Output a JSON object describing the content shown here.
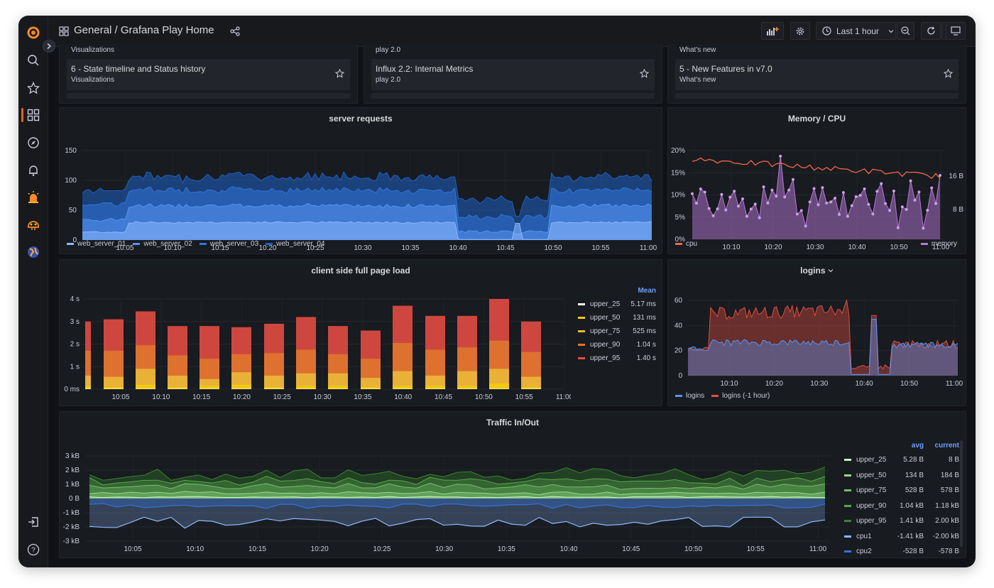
{
  "breadcrumb": {
    "folder": "General",
    "dashboard": " / Grafana Play Home"
  },
  "toolbar": {
    "time_range": "Last 1 hour"
  },
  "sidebar": {
    "icons": [
      "grafana-logo-icon",
      "search-icon",
      "star-icon",
      "dashboards-icon",
      "explore-icon",
      "alerting-icon",
      "oncall-icon",
      "ml-icon",
      "globe-icon",
      "sign-in-icon",
      "help-icon"
    ]
  },
  "lists": [
    {
      "top_sub": "Visualizations",
      "title": "6 - State timeline and Status history",
      "sub": "Visualizations"
    },
    {
      "top_sub": "play 2.0",
      "title": "Influx 2.2: Internal Metrics",
      "sub": "play 2.0"
    },
    {
      "top_sub": "What's new",
      "title": "5 - New Features in v7.0",
      "sub": "What's new"
    }
  ],
  "server_requests": {
    "title": "server requests",
    "yticks": [
      "150",
      "100",
      "50",
      "0"
    ],
    "xticks": [
      "10:05",
      "10:10",
      "10:15",
      "10:20",
      "10:25",
      "10:30",
      "10:35",
      "10:40",
      "10:45",
      "10:50",
      "10:55",
      "11:00"
    ],
    "legend": [
      "web_server_01",
      "web_server_02",
      "web_server_03",
      "web_server_04"
    ],
    "colors": [
      "#8ab8ff",
      "#5794f2",
      "#3274d9",
      "#1f60c4"
    ]
  },
  "memory_cpu": {
    "title": "Memory / CPU",
    "yticks_left": [
      "20%",
      "15%",
      "10%",
      "5%",
      "0%"
    ],
    "yticks_right": [
      "16 B",
      "8 B"
    ],
    "xticks": [
      "10:10",
      "10:20",
      "10:30",
      "10:40",
      "10:50",
      "11:00"
    ],
    "legend": [
      "cpu",
      "memory"
    ],
    "colors": [
      "#f2654a",
      "#b877d9"
    ]
  },
  "page_load": {
    "title": "client side full page load",
    "yticks": [
      "4 s",
      "3 s",
      "2 s",
      "1 s",
      "0 ms"
    ],
    "xticks": [
      "10:05",
      "10:10",
      "10:15",
      "10:20",
      "10:25",
      "10:30",
      "10:35",
      "10:40",
      "10:45",
      "10:50",
      "10:55",
      "11:00"
    ],
    "table_header": "Mean",
    "rows": [
      {
        "name": "upper_25",
        "mean": "5.17 ms",
        "color": "#fff8e5"
      },
      {
        "name": "upper_50",
        "mean": "131 ms",
        "color": "#f2cc0c"
      },
      {
        "name": "upper_75",
        "mean": "525 ms",
        "color": "#eab839"
      },
      {
        "name": "upper_90",
        "mean": "1.04 s",
        "color": "#e0752d"
      },
      {
        "name": "upper_95",
        "mean": "1.40 s",
        "color": "#e24d42"
      }
    ]
  },
  "logins": {
    "title": "logins",
    "yticks": [
      "60",
      "40",
      "20",
      "0"
    ],
    "xticks": [
      "10:10",
      "10:20",
      "10:30",
      "10:40",
      "10:50",
      "11:00"
    ],
    "legend": [
      "logins",
      "logins (-1 hour)"
    ],
    "colors": [
      "#5794f2",
      "#e24d42"
    ]
  },
  "traffic": {
    "title": "Traffic In/Out",
    "yticks": [
      "3 kB",
      "2 kB",
      "1 kB",
      "0 B",
      "-1 kB",
      "-2 kB",
      "-3 kB"
    ],
    "xticks": [
      "10:05",
      "10:10",
      "10:15",
      "10:20",
      "10:25",
      "10:30",
      "10:35",
      "10:40",
      "10:45",
      "10:50",
      "10:55",
      "11:00"
    ],
    "table_header": {
      "avg": "avg",
      "current": "current"
    },
    "rows": [
      {
        "name": "upper_25",
        "avg": "5.28 B",
        "current": "8 B",
        "color": "#c8f2c2"
      },
      {
        "name": "upper_50",
        "avg": "134 B",
        "current": "184 B",
        "color": "#96d98d"
      },
      {
        "name": "upper_75",
        "avg": "528 B",
        "current": "578 B",
        "color": "#73bf69"
      },
      {
        "name": "upper_90",
        "avg": "1.04 kB",
        "current": "1.18 kB",
        "color": "#56a64b"
      },
      {
        "name": "upper_95",
        "avg": "1.41 kB",
        "current": "2.00 kB",
        "color": "#37872d"
      },
      {
        "name": "cpu1",
        "avg": "-1.41 kB",
        "current": "-2.00 kB",
        "color": "#8ab8ff"
      },
      {
        "name": "cpu2",
        "avg": "-528 B",
        "current": "-578 B",
        "color": "#3274d9"
      }
    ]
  }
}
